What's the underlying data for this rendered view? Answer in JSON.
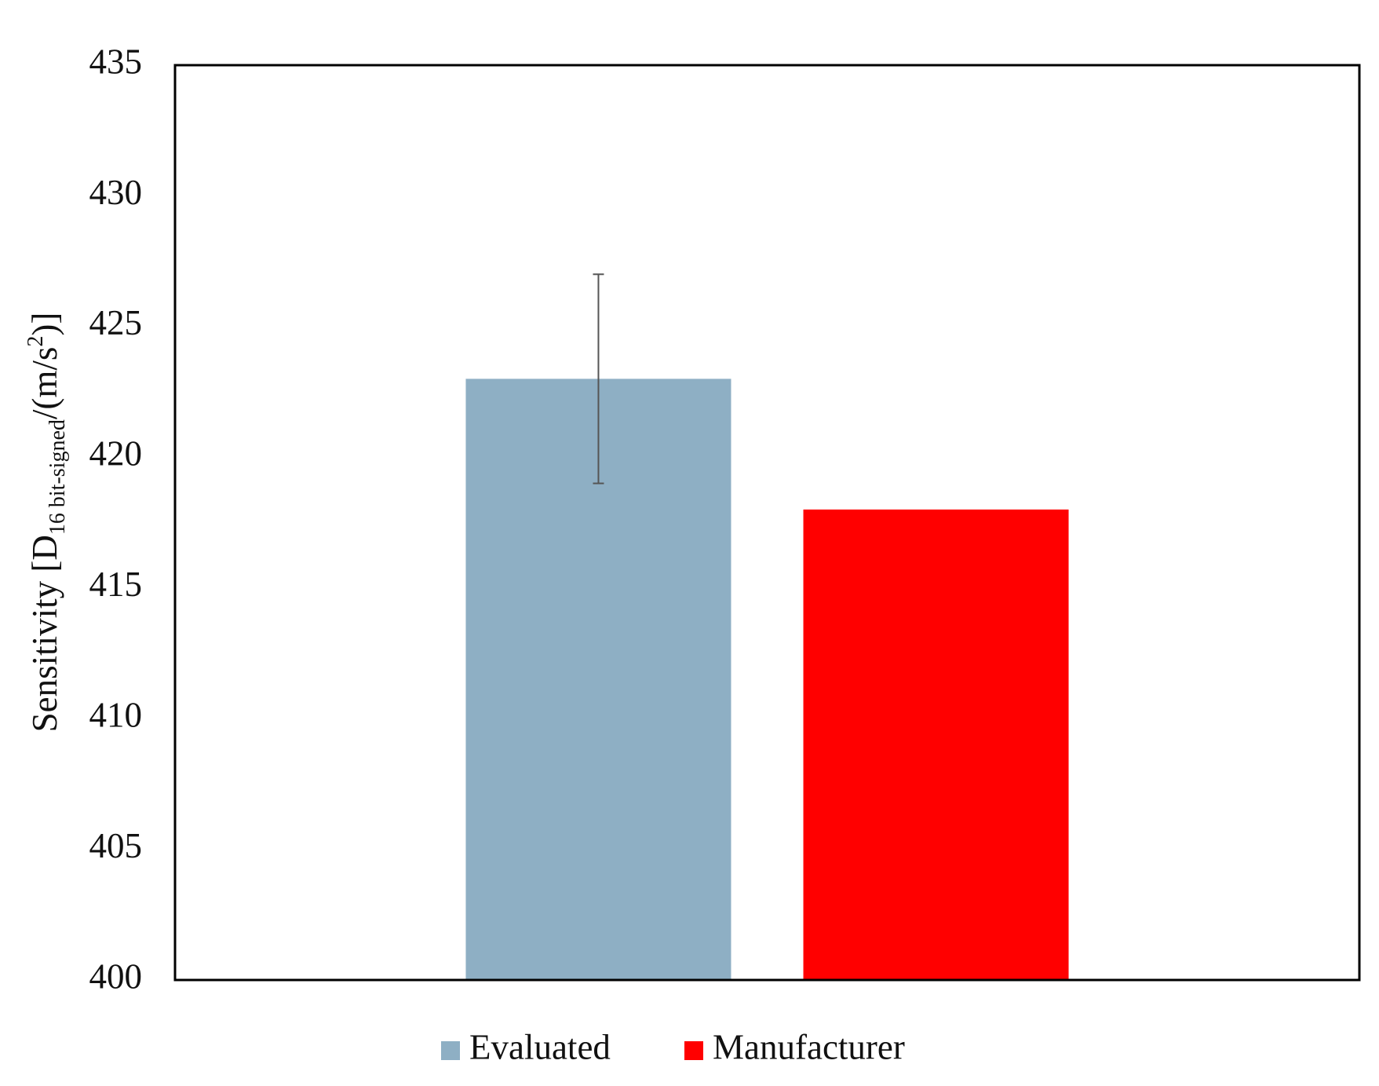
{
  "chart_data": {
    "type": "bar",
    "ylabel_parts": [
      "Sensitivity [D",
      "16 bit-signed",
      "/(m/s",
      "2",
      ")]"
    ],
    "categories": [
      null
    ],
    "series": [
      {
        "name": "Evaluated",
        "color": "#8eafc4",
        "values": [
          423
        ],
        "errors": [
          4
        ]
      },
      {
        "name": "Manufacturer",
        "color": "#ff0000",
        "values": [
          418
        ]
      }
    ],
    "ylim": [
      400,
      435
    ],
    "yticks": [
      400,
      405,
      410,
      415,
      420,
      425,
      430,
      435
    ],
    "grid": false,
    "legend": "bottom"
  }
}
